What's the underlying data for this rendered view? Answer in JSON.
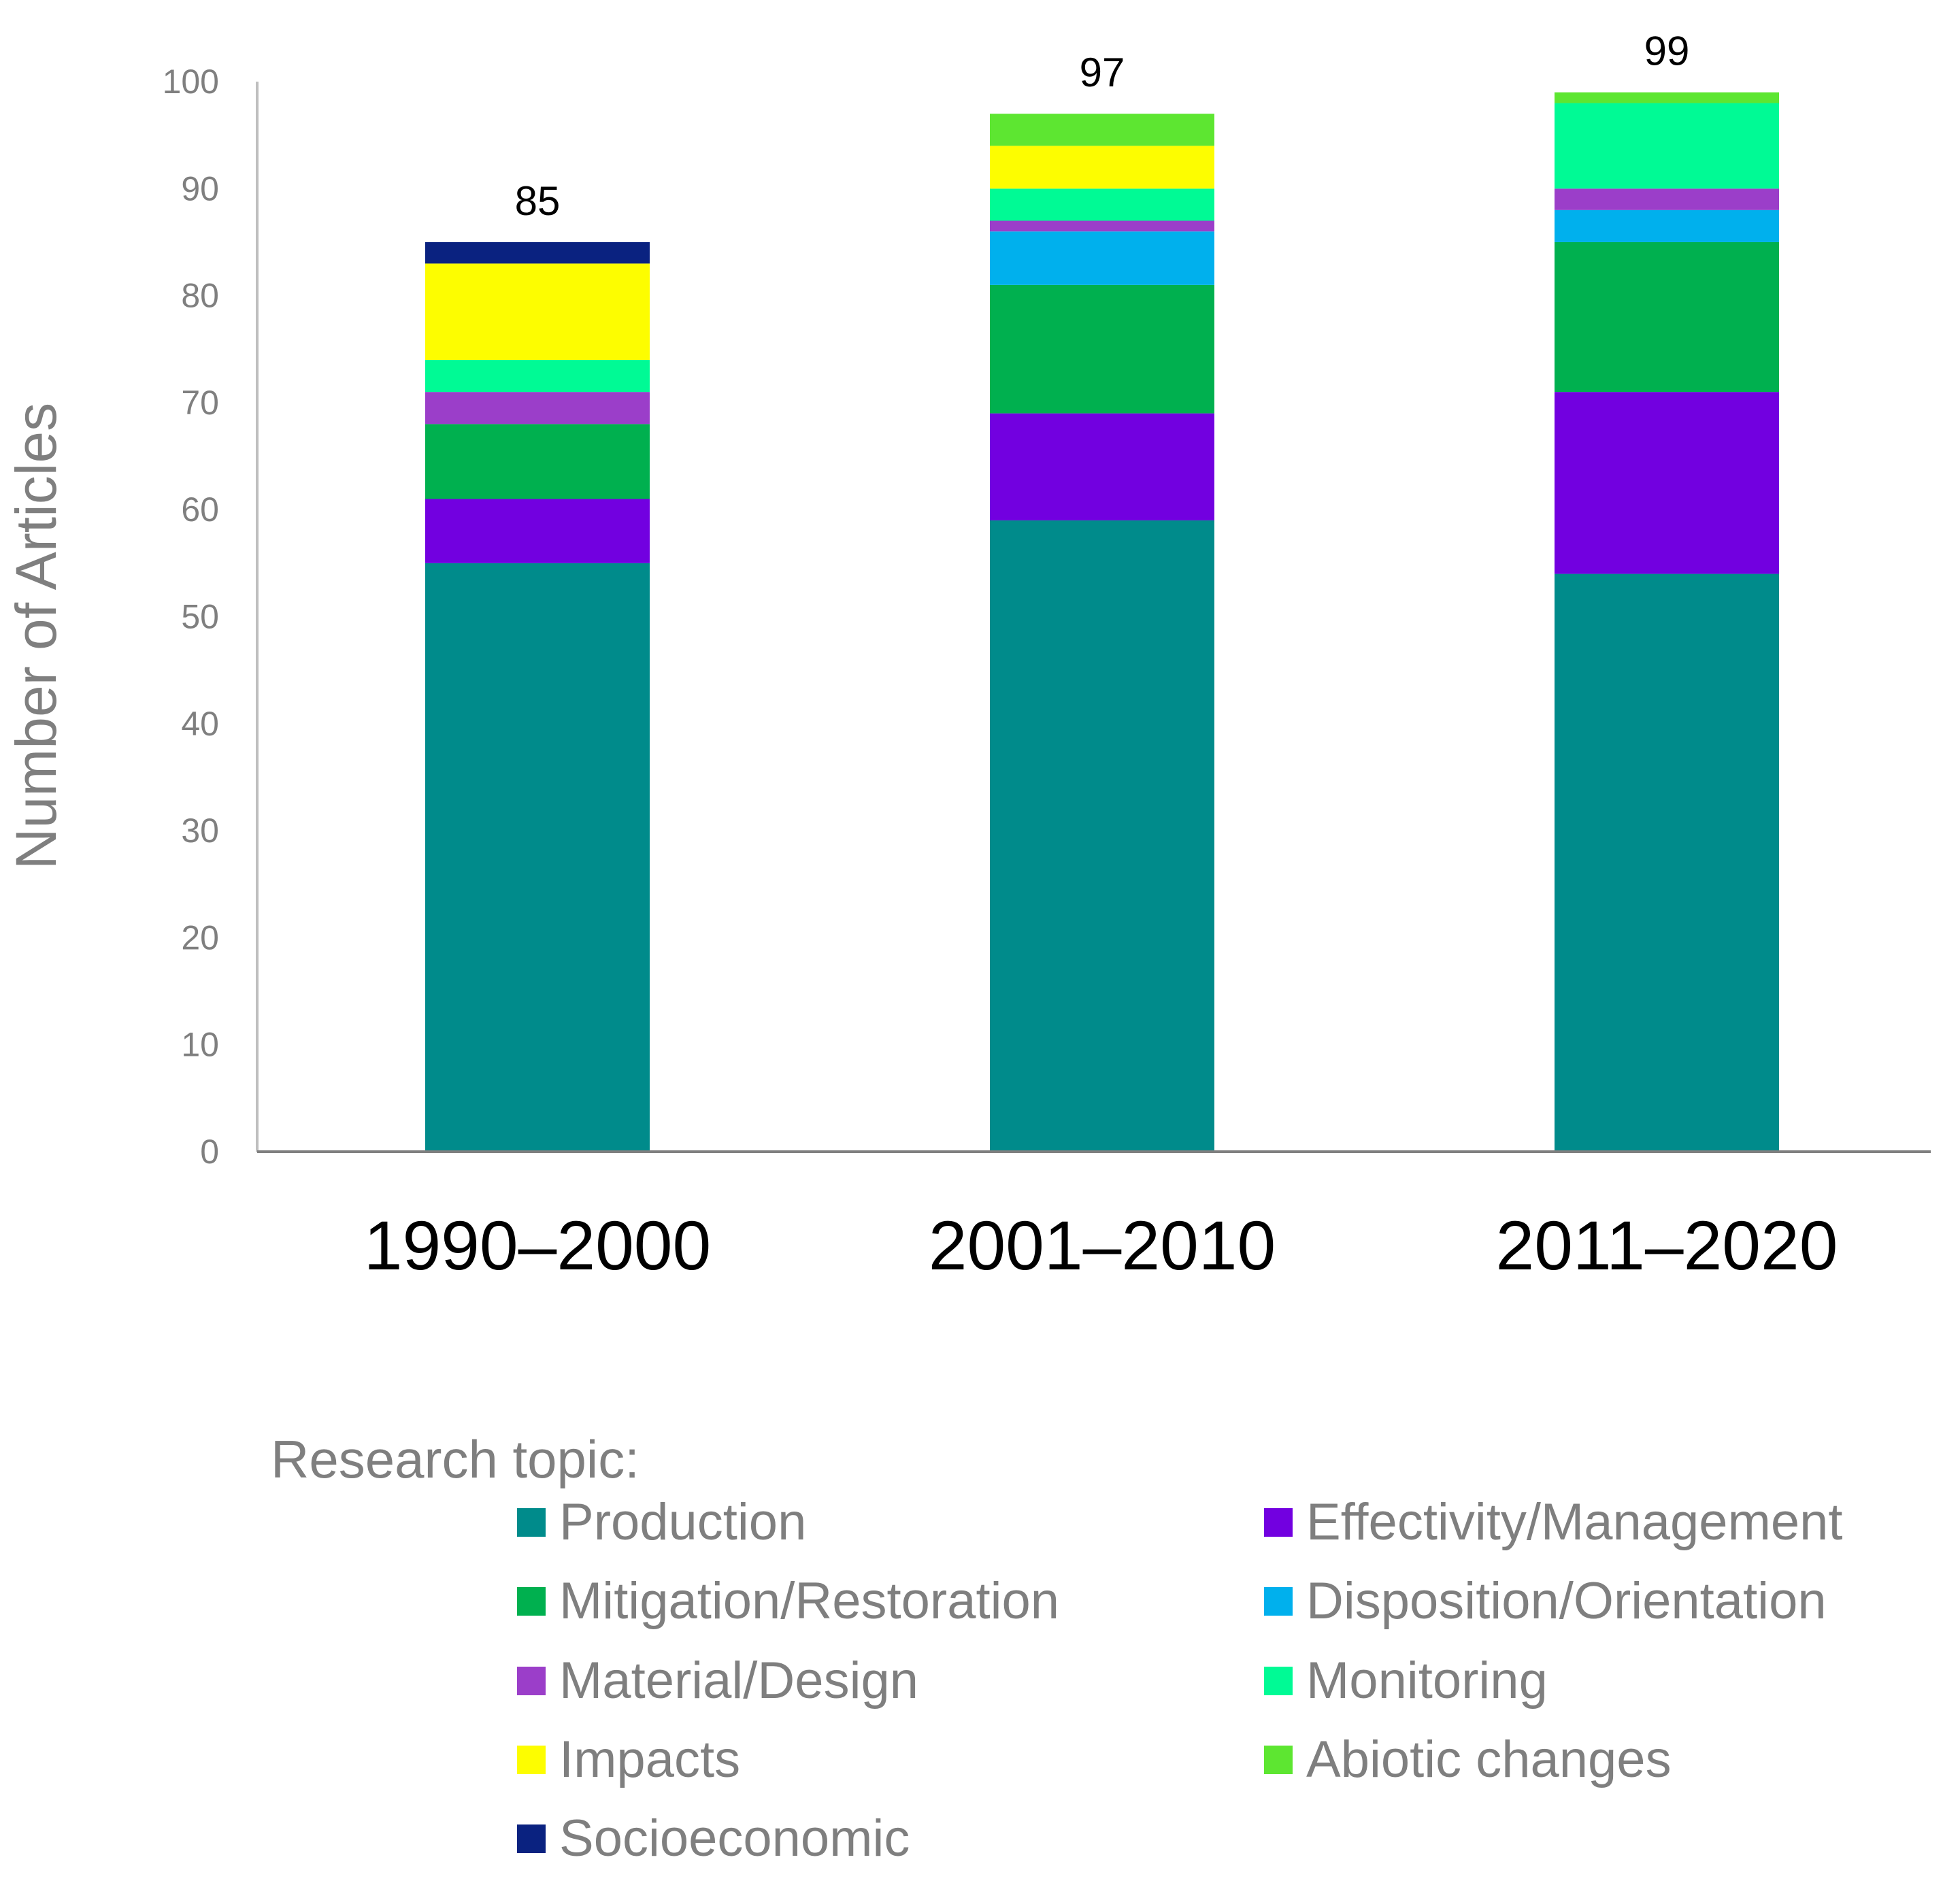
{
  "chart_data": {
    "type": "bar",
    "stacked": true,
    "ylabel": "Number of Articles",
    "ylim": [
      0,
      100
    ],
    "yticks": [
      0,
      10,
      20,
      30,
      40,
      50,
      60,
      70,
      80,
      90,
      100
    ],
    "grid": false,
    "categories": [
      "1990–2000",
      "2001–2010",
      "2011–2020"
    ],
    "totals": [
      85,
      97,
      99
    ],
    "legend_title": "Research topic:",
    "legend_position": "bottom",
    "series": [
      {
        "name": "Production",
        "color": "#008b8b",
        "values": [
          55,
          59,
          54
        ]
      },
      {
        "name": "Effectivity/Management",
        "color": "#7200e0",
        "values": [
          6,
          10,
          17
        ]
      },
      {
        "name": "Mitigation/Restoration",
        "color": "#00b04f",
        "values": [
          7,
          12,
          14
        ]
      },
      {
        "name": "Disposition/Orientation",
        "color": "#00b0ed",
        "values": [
          0,
          5,
          3
        ]
      },
      {
        "name": "Material/Design",
        "color": "#9b3ec9",
        "values": [
          3,
          1,
          2
        ]
      },
      {
        "name": "Monitoring",
        "color": "#00fa95",
        "values": [
          3,
          3,
          8
        ]
      },
      {
        "name": "Impacts",
        "color": "#fdfd00",
        "values": [
          9,
          4,
          0
        ]
      },
      {
        "name": "Abiotic changes",
        "color": "#5de631",
        "values": [
          0,
          3,
          1
        ]
      },
      {
        "name": "Socioeconomic",
        "color": "#0a2280",
        "values": [
          2,
          0,
          0
        ]
      }
    ],
    "legend_order": [
      "Production",
      "Effectivity/Management",
      "Mitigation/Restoration",
      "Disposition/Orientation",
      "Material/Design",
      "Monitoring",
      "Impacts",
      "Abiotic changes",
      "Socioeconomic"
    ]
  }
}
